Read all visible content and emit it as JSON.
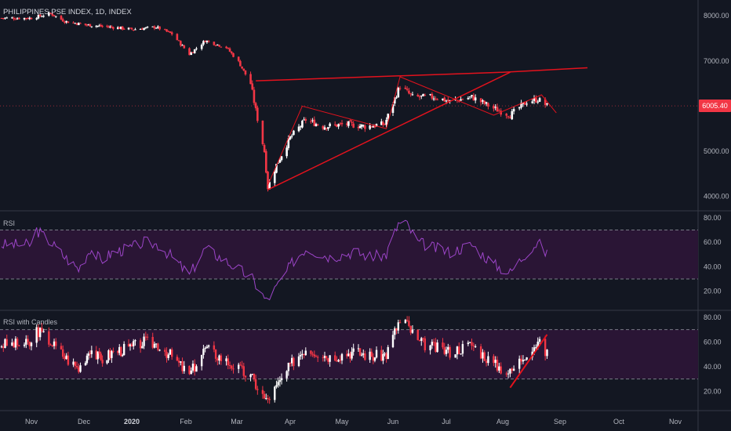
{
  "header": {
    "title": "PHILIPPINES PSE INDEX, 1D, INDEX"
  },
  "price_tag": "6005.40",
  "panes": {
    "rsi_label": "RSI",
    "rsi_candles_label": "RSI with Candles"
  },
  "colors": {
    "background": "#131722",
    "up": "#ffffff",
    "down": "#f23645",
    "trendline": "#e3121d",
    "rsi_line": "#9c45c8",
    "rsi_band": "#2a1535",
    "band_border": "#787b86",
    "axis_text": "#b2b5be"
  },
  "chart_data": [
    {
      "type": "candlestick",
      "title": "PHILIPPINES PSE INDEX, 1D, INDEX",
      "x_ticks": [
        "Nov",
        "Dec",
        "2020",
        "Feb",
        "Mar",
        "Apr",
        "May",
        "Jun",
        "Jul",
        "Aug",
        "Sep",
        "Oct",
        "Nov"
      ],
      "y_ticks": [
        "4000.00",
        "5000.00",
        "6000.00",
        "7000.00",
        "8000.00"
      ],
      "ylim": [
        3700,
        8350
      ],
      "last_price": 6005.4,
      "series": [
        {
          "name": "",
          "close_path": [
            [
              "2019-11-01",
              7950
            ],
            [
              "2019-11-12",
              8050
            ],
            [
              "2019-11-20",
              7880
            ],
            [
              "2019-12-02",
              7800
            ],
            [
              "2019-12-16",
              7760
            ],
            [
              "2020-01-02",
              7700
            ],
            [
              "2020-01-15",
              7750
            ],
            [
              "2020-01-24",
              7600
            ],
            [
              "2020-02-03",
              7150
            ],
            [
              "2020-02-12",
              7450
            ],
            [
              "2020-02-24",
              7300
            ],
            [
              "2020-03-02",
              6980
            ],
            [
              "2020-03-09",
              6500
            ],
            [
              "2020-03-12",
              5900
            ],
            [
              "2020-03-17",
              5000
            ],
            [
              "2020-03-19",
              4200
            ],
            [
              "2020-03-24",
              4700
            ],
            [
              "2020-04-01",
              5300
            ],
            [
              "2020-04-10",
              5700
            ],
            [
              "2020-04-20",
              5550
            ],
            [
              "2020-05-04",
              5600
            ],
            [
              "2020-05-15",
              5550
            ],
            [
              "2020-05-27",
              5600
            ],
            [
              "2020-06-05",
              6450
            ],
            [
              "2020-06-12",
              6200
            ],
            [
              "2020-06-25",
              6200
            ],
            [
              "2020-07-03",
              6100
            ],
            [
              "2020-07-15",
              6200
            ],
            [
              "2020-07-27",
              5950
            ],
            [
              "2020-08-05",
              5800
            ],
            [
              "2020-08-14",
              6100
            ],
            [
              "2020-08-20",
              6150
            ],
            [
              "2020-08-25",
              6005
            ]
          ]
        }
      ],
      "annotations": [
        {
          "kind": "horizontal-resistance",
          "from": [
            "2020-03-12",
            6560
          ],
          "to": [
            "2020-08-01",
            6750
          ]
        },
        {
          "kind": "extended-resistance",
          "from": [
            "2020-08-01",
            6750
          ],
          "to": [
            "2020-09-15",
            6850
          ]
        },
        {
          "kind": "rising-support",
          "from": [
            "2020-03-19",
            4150
          ],
          "to": [
            "2020-08-05",
            6750
          ]
        },
        {
          "kind": "swing-path",
          "points": [
            [
              "2020-03-19",
              4250
            ],
            [
              "2020-04-08",
              6000
            ],
            [
              "2020-05-28",
              5500
            ],
            [
              "2020-06-05",
              6650
            ],
            [
              "2020-07-27",
              5800
            ],
            [
              "2020-08-22",
              6250
            ],
            [
              "2020-08-30",
              5850
            ]
          ]
        }
      ]
    },
    {
      "type": "line",
      "title": "RSI",
      "y_ticks": [
        "20.00",
        "40.00",
        "60.00",
        "80.00"
      ],
      "ylim": [
        5,
        85
      ],
      "bands": [
        30,
        70
      ],
      "series": [
        {
          "name": "",
          "values": [
            [
              "2019-11-01",
              58
            ],
            [
              "2019-11-04",
              70
            ],
            [
              "2019-11-12",
              60
            ],
            [
              "2019-11-20",
              48
            ],
            [
              "2019-11-28",
              38
            ],
            [
              "2019-12-05",
              55
            ],
            [
              "2019-12-12",
              45
            ],
            [
              "2019-12-20",
              52
            ],
            [
              "2019-12-31",
              55
            ],
            [
              "2020-01-08",
              60
            ],
            [
              "2020-01-16",
              58
            ],
            [
              "2020-01-24",
              48
            ],
            [
              "2020-02-03",
              33
            ],
            [
              "2020-02-12",
              55
            ],
            [
              "2020-02-20",
              48
            ],
            [
              "2020-03-02",
              38
            ],
            [
              "2020-03-10",
              30
            ],
            [
              "2020-03-18",
              12
            ],
            [
              "2020-03-25",
              25
            ],
            [
              "2020-04-03",
              45
            ],
            [
              "2020-04-10",
              55
            ],
            [
              "2020-04-24",
              48
            ],
            [
              "2020-05-08",
              52
            ],
            [
              "2020-05-20",
              48
            ],
            [
              "2020-05-28",
              50
            ],
            [
              "2020-06-04",
              75
            ],
            [
              "2020-06-08",
              76
            ],
            [
              "2020-06-15",
              60
            ],
            [
              "2020-06-25",
              55
            ],
            [
              "2020-07-03",
              52
            ],
            [
              "2020-07-15",
              58
            ],
            [
              "2020-07-27",
              42
            ],
            [
              "2020-08-05",
              35
            ],
            [
              "2020-08-14",
              52
            ],
            [
              "2020-08-20",
              60
            ],
            [
              "2020-08-25",
              50
            ]
          ]
        }
      ]
    },
    {
      "type": "candlestick",
      "title": "RSI with Candles",
      "y_ticks": [
        "20.00",
        "40.00",
        "60.00",
        "80.00"
      ],
      "ylim": [
        5,
        85
      ],
      "bands": [
        30,
        70
      ],
      "annotations": [
        {
          "kind": "rising-trendline",
          "from": [
            "2020-08-05",
            23
          ],
          "to": [
            "2020-08-25",
            66
          ]
        }
      ]
    }
  ]
}
